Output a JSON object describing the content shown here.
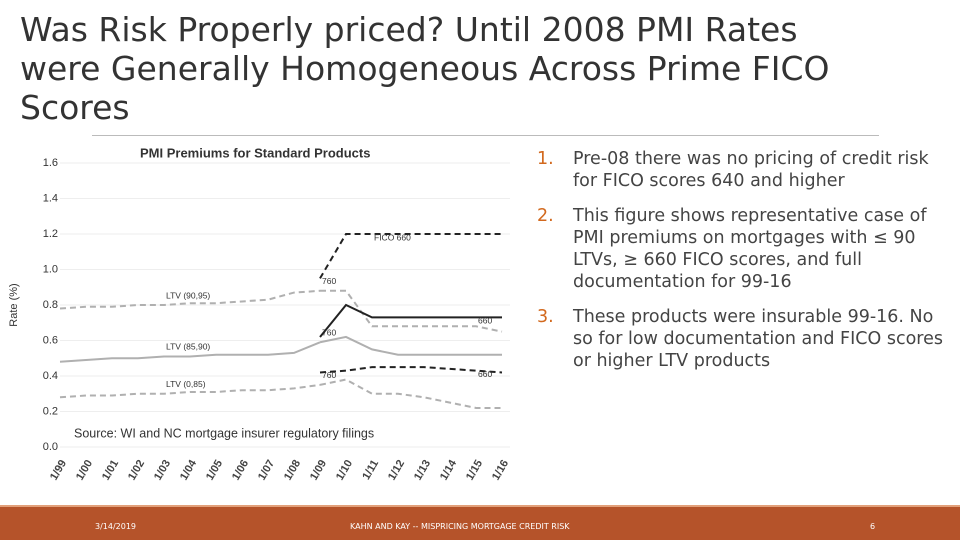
{
  "header": {
    "title": "Was Risk Properly priced? Until 2008 PMI Rates were Generally Homogeneous Across Prime FICO Scores"
  },
  "chart_data": {
    "type": "line",
    "title": "PMI Premiums for Standard Products",
    "y_label": "Rate (%)",
    "categories": [
      "1/99",
      "1/00",
      "1/01",
      "1/02",
      "1/03",
      "1/04",
      "1/05",
      "1/06",
      "1/07",
      "1/08",
      "1/09",
      "1/10",
      "1/11",
      "1/12",
      "1/13",
      "1/14",
      "1/15",
      "1/16"
    ],
    "ylim": [
      0,
      1.6
    ],
    "yticks": [
      {
        "value": 0,
        "label": "0.0"
      },
      0.2,
      0.4,
      0.6,
      0.8,
      {
        "value": 1,
        "label": "1.0"
      },
      1.2,
      1.4,
      1.6
    ],
    "series": [
      {
        "name": "LTV (90,95)",
        "color": "#b0b0b0",
        "dashed": true,
        "values": [
          0.78,
          0.79,
          0.79,
          0.8,
          0.8,
          0.81,
          0.81,
          0.82,
          0.83,
          0.87,
          0.88,
          null,
          null,
          null,
          null,
          null,
          null,
          null
        ]
      },
      {
        "name": "760",
        "color": "#b0b0b0",
        "dashed": true,
        "values": [
          null,
          null,
          null,
          null,
          null,
          null,
          null,
          null,
          null,
          null,
          0.88,
          0.88,
          0.68,
          0.68,
          0.68,
          0.68,
          0.68,
          0.65
        ]
      },
      {
        "name": "FICO 660",
        "color": "#222222",
        "dashed": true,
        "values": [
          null,
          null,
          null,
          null,
          null,
          null,
          null,
          null,
          null,
          null,
          0.95,
          1.2,
          1.2,
          1.2,
          1.2,
          1.2,
          1.2,
          1.2
        ]
      },
      {
        "name": "LTV (85,90)",
        "color": "#b0b0b0",
        "dashed": false,
        "values": [
          0.48,
          0.49,
          0.5,
          0.5,
          0.51,
          0.51,
          0.52,
          0.52,
          0.52,
          0.53,
          0.59,
          null,
          null,
          null,
          null,
          null,
          null,
          null
        ]
      },
      {
        "name": "760",
        "color": "#b0b0b0",
        "dashed": false,
        "values": [
          null,
          null,
          null,
          null,
          null,
          null,
          null,
          null,
          null,
          null,
          0.59,
          0.62,
          0.55,
          0.52,
          0.52,
          0.52,
          0.52,
          0.52
        ]
      },
      {
        "name": "660",
        "color": "#222222",
        "dashed": false,
        "values": [
          null,
          null,
          null,
          null,
          null,
          null,
          null,
          null,
          null,
          null,
          0.62,
          0.8,
          0.73,
          0.73,
          0.73,
          0.73,
          0.73,
          0.73
        ]
      },
      {
        "name": "LTV (0,85)",
        "color": "#b0b0b0",
        "dashed": true,
        "values": [
          0.28,
          0.29,
          0.29,
          0.3,
          0.3,
          0.31,
          0.31,
          0.32,
          0.32,
          0.33,
          0.35,
          null,
          null,
          null,
          null,
          null,
          null,
          null
        ]
      },
      {
        "name": "760",
        "color": "#b0b0b0",
        "dashed": true,
        "values": [
          null,
          null,
          null,
          null,
          null,
          null,
          null,
          null,
          null,
          null,
          0.35,
          0.38,
          0.3,
          0.3,
          0.28,
          0.25,
          0.22,
          0.22
        ]
      },
      {
        "name": "660",
        "color": "#222222",
        "dashed": true,
        "values": [
          null,
          null,
          null,
          null,
          null,
          null,
          null,
          null,
          null,
          null,
          0.42,
          0.43,
          0.45,
          0.45,
          0.45,
          0.44,
          0.43,
          0.42
        ]
      }
    ]
  },
  "source": "Source: WI and NC mortgage insurer regulatory filings",
  "bullets": [
    {
      "num": "1.",
      "text": "Pre-08 there was no pricing of credit risk for FICO scores 640 and higher"
    },
    {
      "num": "2.",
      "text": "This figure shows representative case of PMI premiums on mortgages with ≤ 90 LTVs, ≥ 660 FICO scores, and full documentation for 99-16"
    },
    {
      "num": "3.",
      "text": "These products were insurable 99-16. No so for low documentation and FICO scores or higher LTV products"
    }
  ],
  "footer": {
    "date": "3/14/2019",
    "center": "KAHN AND KAY -- MISPRICING MORTGAGE CREDIT RISK",
    "page": "6"
  }
}
